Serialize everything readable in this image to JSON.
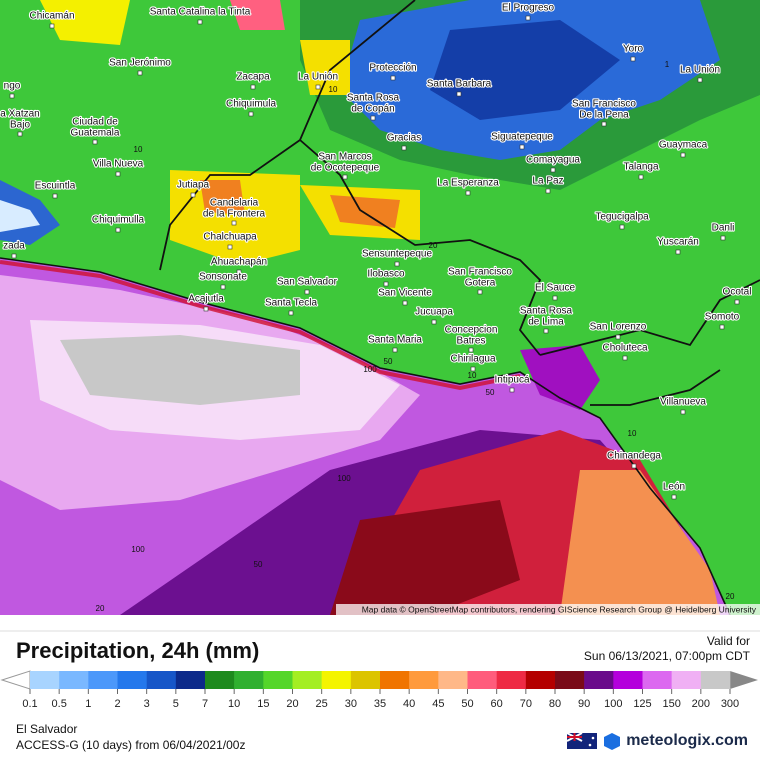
{
  "map": {
    "places": [
      "Chicamán",
      "Santa Catalina la Tinta",
      "El Progreso",
      "San Jerónimo",
      "Zacapa",
      "La Unión",
      "Protección",
      "Yoro",
      "La Unión",
      "Santa Barbara",
      "ngo",
      "Chiquimula",
      [
        "Santa Rosa",
        "de Copán"
      ],
      [
        "San Francisco",
        "De la Pena"
      ],
      [
        "a Xatzan",
        "Bajo"
      ],
      [
        "Ciudad de",
        "Guatemala"
      ],
      "Gracias",
      "Siguatepeque",
      "Guaymaca",
      "Villa Nueva",
      [
        "San Marcos",
        "de Ocotepeque"
      ],
      "Comayagua",
      "Talanga",
      "Escuintla",
      "Jutiapa",
      "La Esperanza",
      "La Paz",
      [
        "Candelaria",
        "de la Frontera"
      ],
      "Tegucigalpa",
      "Chiquimulla",
      "Danli",
      "Chalchuapa",
      "Yuscarán",
      "zada",
      "Sensuntepeque",
      "Ahuachapán",
      [
        "San Francisco",
        "Gotera"
      ],
      "Sonsonate",
      "Ilobasco",
      "San Salvador",
      "El Sauce",
      "Ocotal",
      "Acajutla",
      "San Vicente",
      "Santa Tecla",
      "Jucuapa",
      [
        "Santa Rosa",
        "de Lima"
      ],
      "Somoto",
      "San Lorenzo",
      [
        "Concepcion",
        "Batres"
      ],
      "Santa Maria",
      "Choluteca",
      "Chirilagua",
      "Intipucá",
      "Villanueva",
      "Chinandega",
      "León"
    ],
    "contour_labels": [
      "1",
      "10",
      "10",
      "20",
      "50",
      "100",
      "10",
      "50",
      "10",
      "100",
      "100",
      "50",
      "20",
      "20"
    ],
    "attribution": "Map data © OpenStreetMap contributors, rendering GIScience Research Group @ Heidelberg University"
  },
  "header": {
    "title": "Precipitation, 24h (mm)",
    "valid_label": "Valid for",
    "valid_time": "Sun 06/13/2021, 07:00pm CDT"
  },
  "legend": {
    "ticks": [
      0.1,
      0.5,
      1,
      2,
      3,
      5,
      7,
      10,
      15,
      20,
      25,
      30,
      35,
      40,
      45,
      50,
      60,
      70,
      80,
      90,
      100,
      125,
      150,
      200,
      300
    ],
    "colors": [
      "#a8d4ff",
      "#7ab8ff",
      "#4c98fa",
      "#2478ec",
      "#1656c8",
      "#0c2a8a",
      "#1e8a1e",
      "#30b030",
      "#54d62a",
      "#a4ee22",
      "#f4f400",
      "#dcc400",
      "#f07400",
      "#ff9a3c",
      "#ffb888",
      "#ff5c7c",
      "#ee2a44",
      "#b40000",
      "#7a0a18",
      "#6a0a8a",
      "#b400dc",
      "#dc68f0",
      "#f0b0f4",
      "#c8c8c8"
    ]
  },
  "footer": {
    "region": "El Salvador",
    "model": "ACCESS-G (10 days) from 06/04/2021/00z",
    "brand": "meteologix.com"
  }
}
